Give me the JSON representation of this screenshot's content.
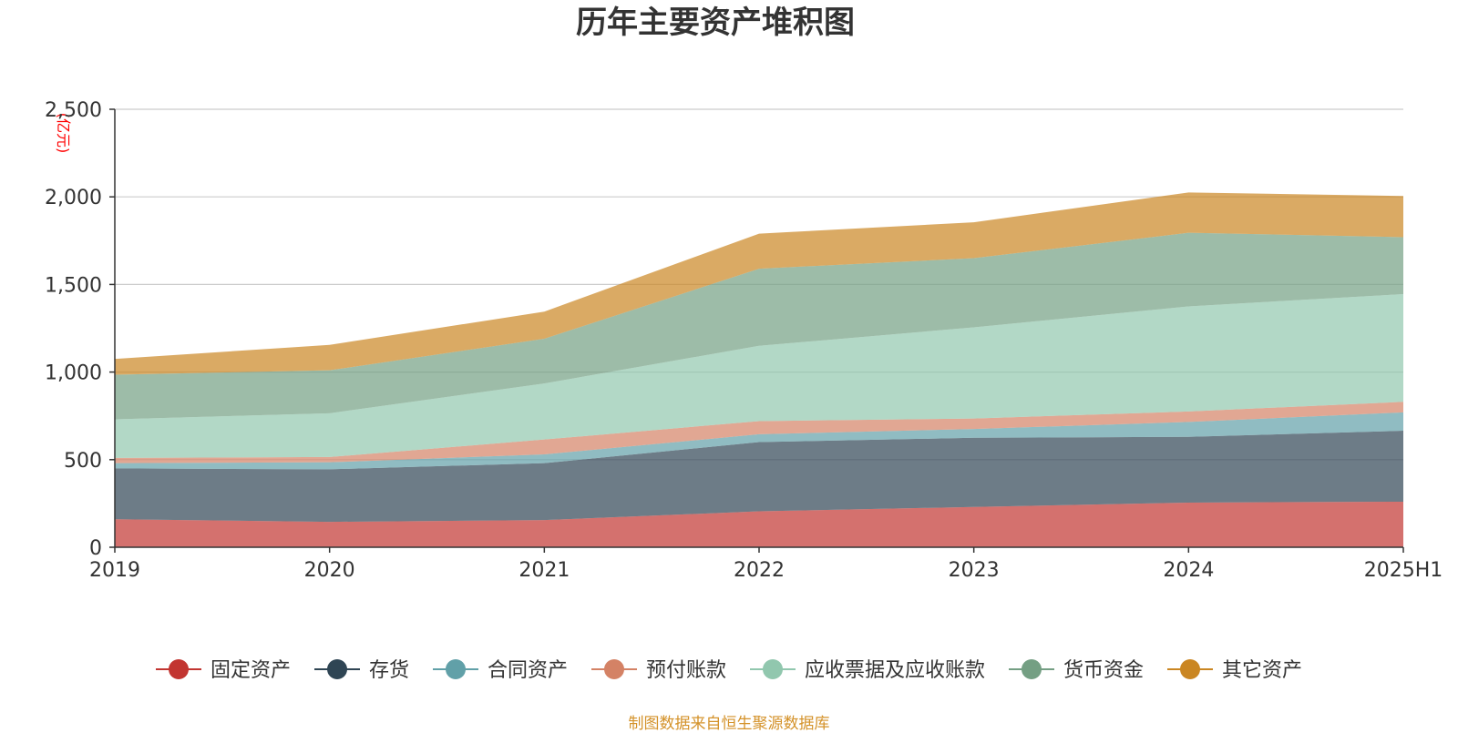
{
  "chart_data": {
    "type": "area",
    "stacked": true,
    "title": "历年主要资产堆积图",
    "unit_label": "(亿元)",
    "x": [
      "2019",
      "2020",
      "2021",
      "2022",
      "2023",
      "2024",
      "2025H1"
    ],
    "y_ticks": [
      "0",
      "500",
      "1,000",
      "1,500",
      "2,000",
      "2,500"
    ],
    "ylim": [
      0,
      2500
    ],
    "grid": true,
    "legend_position": "bottom",
    "series": [
      {
        "name": "固定资产",
        "color": "#c23531",
        "values": [
          160,
          145,
          155,
          205,
          230,
          255,
          260
        ]
      },
      {
        "name": "存货",
        "color": "#2f4554",
        "values": [
          290,
          300,
          325,
          395,
          395,
          375,
          405
        ]
      },
      {
        "name": "合同资产",
        "color": "#61a0a8",
        "values": [
          30,
          40,
          50,
          45,
          50,
          85,
          105
        ]
      },
      {
        "name": "预付账款",
        "color": "#d48265",
        "values": [
          30,
          30,
          85,
          75,
          60,
          60,
          60
        ]
      },
      {
        "name": "应收票据及应收账款",
        "color": "#91c7ae",
        "values": [
          220,
          250,
          320,
          430,
          520,
          600,
          615
        ]
      },
      {
        "name": "货币资金",
        "color": "#749f83",
        "values": [
          255,
          245,
          255,
          440,
          395,
          420,
          325
        ]
      },
      {
        "name": "其它资产",
        "color": "#ca8622",
        "values": [
          90,
          145,
          155,
          200,
          205,
          230,
          235
        ]
      }
    ]
  },
  "footer": {
    "source": "制图数据来自恒生聚源数据库"
  }
}
